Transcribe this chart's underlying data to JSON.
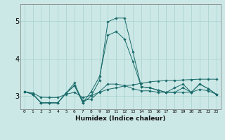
{
  "xlabel": "Humidex (Indice chaleur)",
  "bg_color": "#cce8e6",
  "line_color": "#1a6b6b",
  "grid_color": "#aad4d2",
  "x_ticks": [
    0,
    1,
    2,
    3,
    4,
    5,
    6,
    7,
    8,
    9,
    10,
    11,
    12,
    13,
    14,
    15,
    16,
    17,
    18,
    19,
    20,
    21,
    22,
    23
  ],
  "ylim": [
    2.65,
    5.45
  ],
  "yticks": [
    3,
    4,
    5
  ],
  "figsize": [
    3.2,
    2.0
  ],
  "dpi": 100,
  "series": [
    [
      3.12,
      3.08,
      2.97,
      2.96,
      2.96,
      3.05,
      3.1,
      2.96,
      3.02,
      3.1,
      3.18,
      3.22,
      3.27,
      3.3,
      3.34,
      3.38,
      3.4,
      3.41,
      3.42,
      3.43,
      3.44,
      3.45,
      3.45,
      3.45
    ],
    [
      3.12,
      3.05,
      2.82,
      2.82,
      2.82,
      3.08,
      3.28,
      2.88,
      2.92,
      3.12,
      3.32,
      3.32,
      3.28,
      3.2,
      3.14,
      3.14,
      3.1,
      3.1,
      3.1,
      3.1,
      3.1,
      3.18,
      3.14,
      3.05
    ],
    [
      3.12,
      3.05,
      2.82,
      2.82,
      2.82,
      3.08,
      3.28,
      2.82,
      3.0,
      3.42,
      4.98,
      5.08,
      5.08,
      4.18,
      3.25,
      3.22,
      3.16,
      3.1,
      3.1,
      3.22,
      3.1,
      3.32,
      3.2,
      3.05
    ],
    [
      3.12,
      3.05,
      2.82,
      2.82,
      2.82,
      3.08,
      3.35,
      2.82,
      3.12,
      3.52,
      4.62,
      4.72,
      4.52,
      3.92,
      3.25,
      3.22,
      3.16,
      3.1,
      3.22,
      3.32,
      3.1,
      3.32,
      3.2,
      3.05
    ]
  ]
}
